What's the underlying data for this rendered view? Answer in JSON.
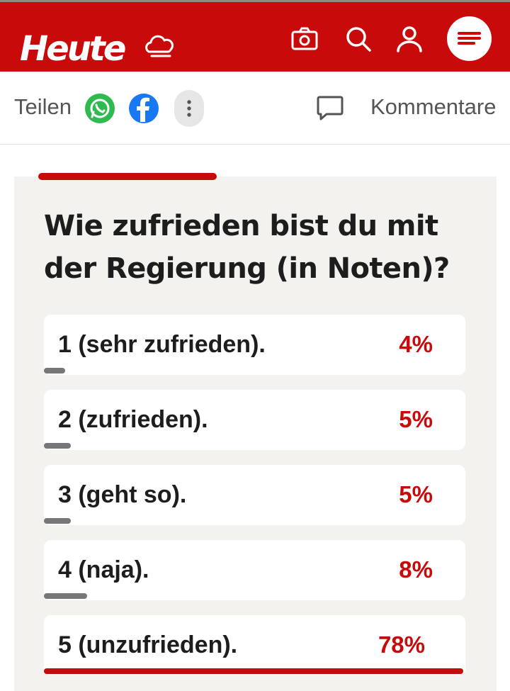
{
  "header": {
    "logo_text": "Heute",
    "brand_color": "#c80a0a",
    "icons": [
      "weather-cloud-icon",
      "camera-icon",
      "search-icon",
      "user-icon",
      "menu-icon"
    ]
  },
  "share_bar": {
    "share_label": "Teilen",
    "share_icons": [
      "whatsapp-icon",
      "facebook-icon",
      "more-options-icon"
    ],
    "comments_label": "Kommentare"
  },
  "poll": {
    "question": "Wie zufrieden bist du mit der Regierung (in Noten)?",
    "options": [
      {
        "label": "1 (sehr zufrieden).",
        "percent_text": "4%",
        "share": 4,
        "leading": false
      },
      {
        "label": "2 (zufrieden).",
        "percent_text": "5%",
        "share": 5,
        "leading": false
      },
      {
        "label": "3 (geht so).",
        "percent_text": "5%",
        "share": 5,
        "leading": false
      },
      {
        "label": "4 (naja).",
        "percent_text": "8%",
        "share": 8,
        "leading": false
      },
      {
        "label": "5 (unzufrieden).",
        "percent_text": "78%",
        "share": 78,
        "leading": true
      }
    ]
  }
}
